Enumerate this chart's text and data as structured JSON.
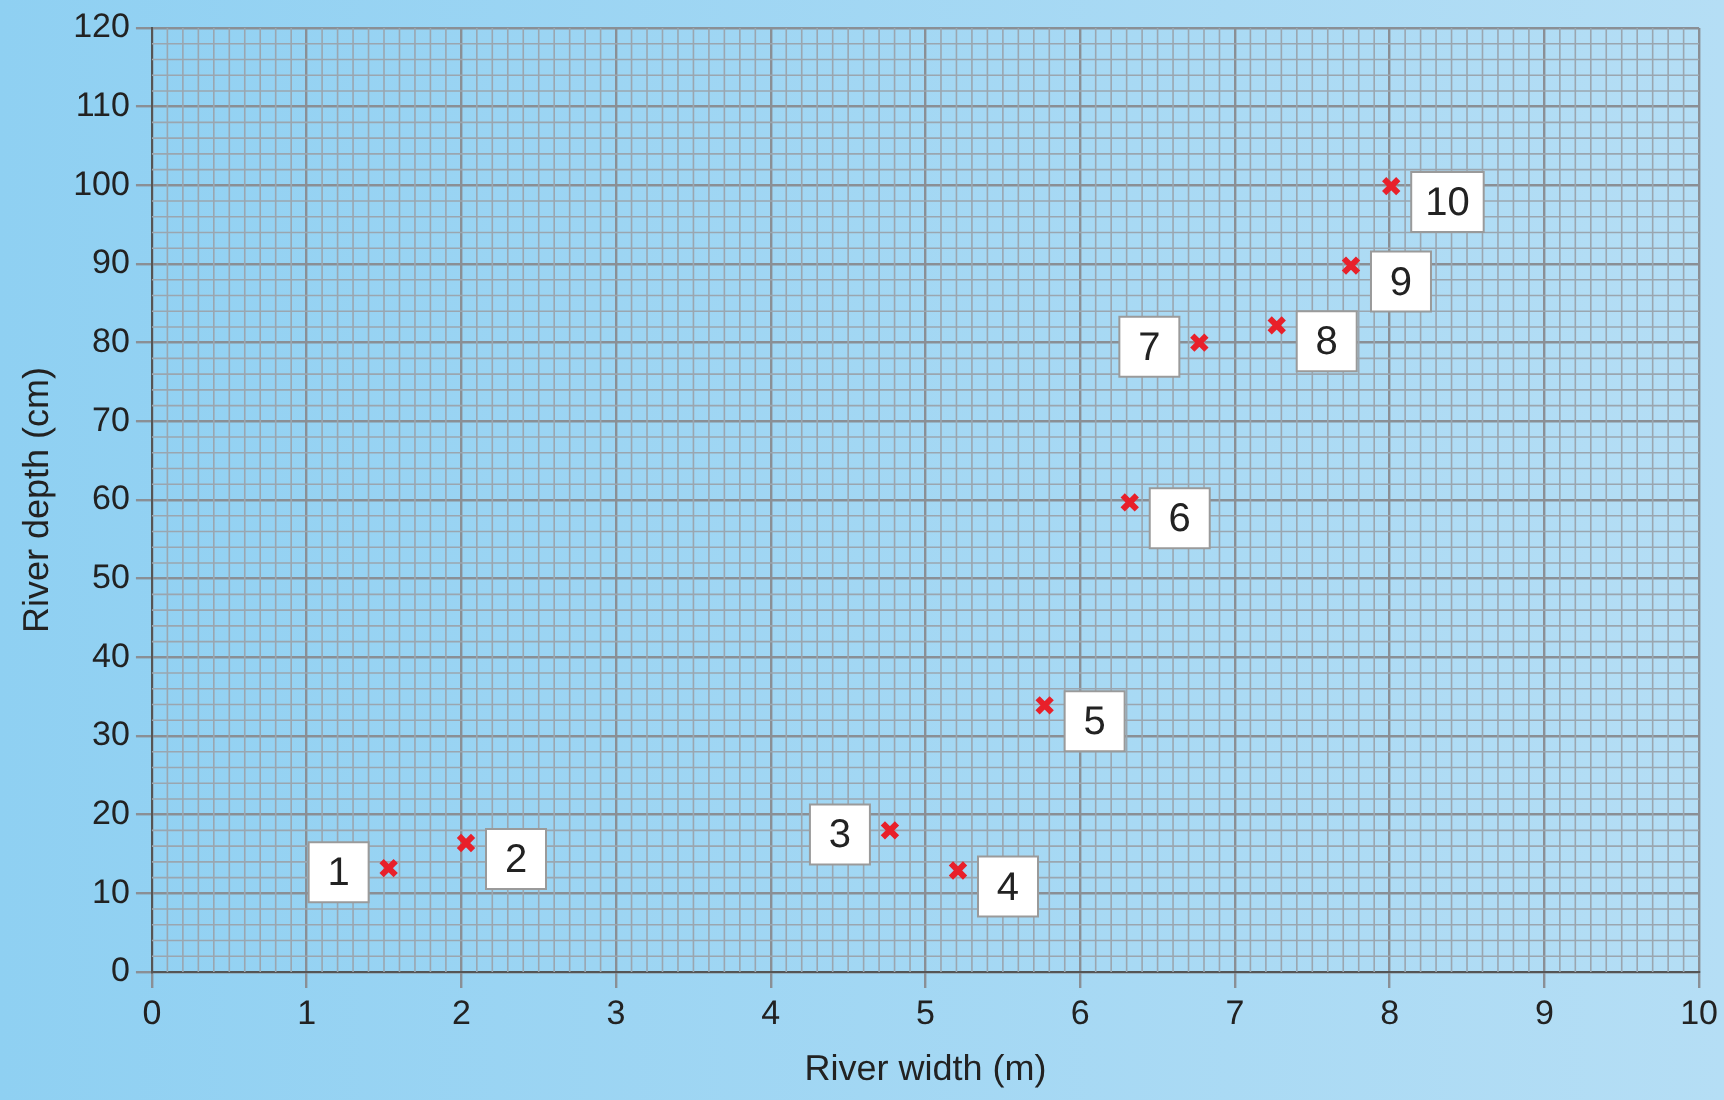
{
  "chart_data": {
    "type": "scatter",
    "xlabel": "River width (m)",
    "ylabel": "River depth (cm)",
    "x": [
      1.53,
      2.03,
      4.77,
      5.21,
      5.77,
      6.32,
      6.77,
      7.27,
      7.75,
      8.01
    ],
    "series": [
      {
        "color": "#e8202a",
        "values": [
          13.2,
          16.4,
          18,
          12.9,
          33.9,
          59.7,
          80,
          82.2,
          89.8,
          99.9
        ]
      }
    ],
    "xlim": [
      0,
      10
    ],
    "xticks": [
      0,
      1,
      2,
      3,
      4,
      5,
      6,
      7,
      8,
      9,
      10
    ],
    "ylim": [
      0,
      120
    ],
    "yticks": [
      0,
      10,
      20,
      30,
      40,
      50,
      60,
      70,
      80,
      90,
      100,
      110,
      120
    ],
    "grid": true,
    "legend": false,
    "marker": "cross",
    "annotations": [
      {
        "text": "1",
        "x": 1.53,
        "y": 13.2
      },
      {
        "text": "2",
        "x": 2.03,
        "y": 16.4
      },
      {
        "text": "3",
        "x": 4.77,
        "y": 18
      },
      {
        "text": "4",
        "x": 5.21,
        "y": 12.9
      },
      {
        "text": "5",
        "x": 5.77,
        "y": 33.9
      },
      {
        "text": "6",
        "x": 6.32,
        "y": 59.7
      },
      {
        "text": "7",
        "x": 6.77,
        "y": 80
      },
      {
        "text": "8",
        "x": 7.27,
        "y": 82.2
      },
      {
        "text": "9",
        "x": 7.75,
        "y": 89.8
      },
      {
        "text": "10",
        "x": 8.01,
        "y": 99.9
      }
    ]
  }
}
